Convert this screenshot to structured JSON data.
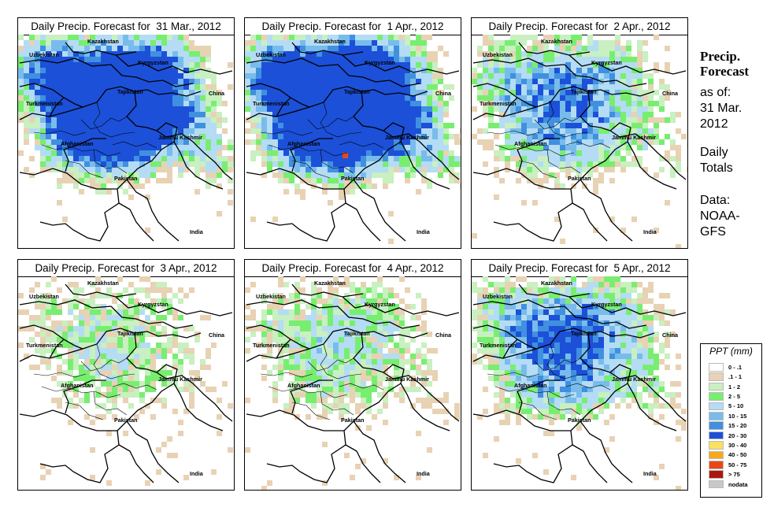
{
  "panels": [
    {
      "title": "Daily Precip. Forecast for  31 Mar., 2012",
      "intensity": 1.0
    },
    {
      "title": "Daily Precip. Forecast for  1 Apr., 2012",
      "intensity": 1.1
    },
    {
      "title": "Daily Precip. Forecast for  2 Apr., 2012",
      "intensity": 0.55
    },
    {
      "title": "Daily Precip. Forecast for  3 Apr., 2012",
      "intensity": 0.3
    },
    {
      "title": "Daily Precip. Forecast for  4 Apr., 2012",
      "intensity": 0.35
    },
    {
      "title": "Daily Precip. Forecast for  5 Apr., 2012",
      "intensity": 0.6
    }
  ],
  "map_labels": {
    "kazakhstan": "Kazakhstan",
    "uzbekistan": "Uzbekistan",
    "kyrgyzstan": "Kyrgyzstan",
    "tajikistan": "Tajikistan",
    "china": "China",
    "turkmenistan": "Turkmenistan",
    "afghanistan": "Afghanistan",
    "jammu_kashmir": "Jammu Kashmir",
    "pakistan": "Pakistan",
    "india": "India"
  },
  "side_info": {
    "title_line1": "Precip.",
    "title_line2": "Forecast",
    "asof_line1": "as of:",
    "asof_line2": "31 Mar.",
    "asof_line3": "2012",
    "totals_line1": "Daily",
    "totals_line2": "Totals",
    "data_line1": "Data:",
    "data_line2": "NOAA-",
    "data_line3": "GFS"
  },
  "legend": {
    "title": "PPT (mm)",
    "items": [
      {
        "label": "0 - .1",
        "color": "#ffffff"
      },
      {
        "label": ".1 - 1",
        "color": "#e8d2b4"
      },
      {
        "label": "1 - 2",
        "color": "#c8f0c0"
      },
      {
        "label": "2 - 5",
        "color": "#78ee70"
      },
      {
        "label": "5 - 10",
        "color": "#b4dcf4"
      },
      {
        "label": "10 - 15",
        "color": "#78bcec"
      },
      {
        "label": "15 - 20",
        "color": "#4090e0"
      },
      {
        "label": "20 - 30",
        "color": "#1c50d8"
      },
      {
        "label": "30 - 40",
        "color": "#f8e060"
      },
      {
        "label": "40 - 50",
        "color": "#f8a818"
      },
      {
        "label": "50 - 75",
        "color": "#e84818"
      },
      {
        "label": "> 75",
        "color": "#a81810"
      },
      {
        "label": "nodata",
        "color": "#c8c8c8"
      }
    ]
  }
}
